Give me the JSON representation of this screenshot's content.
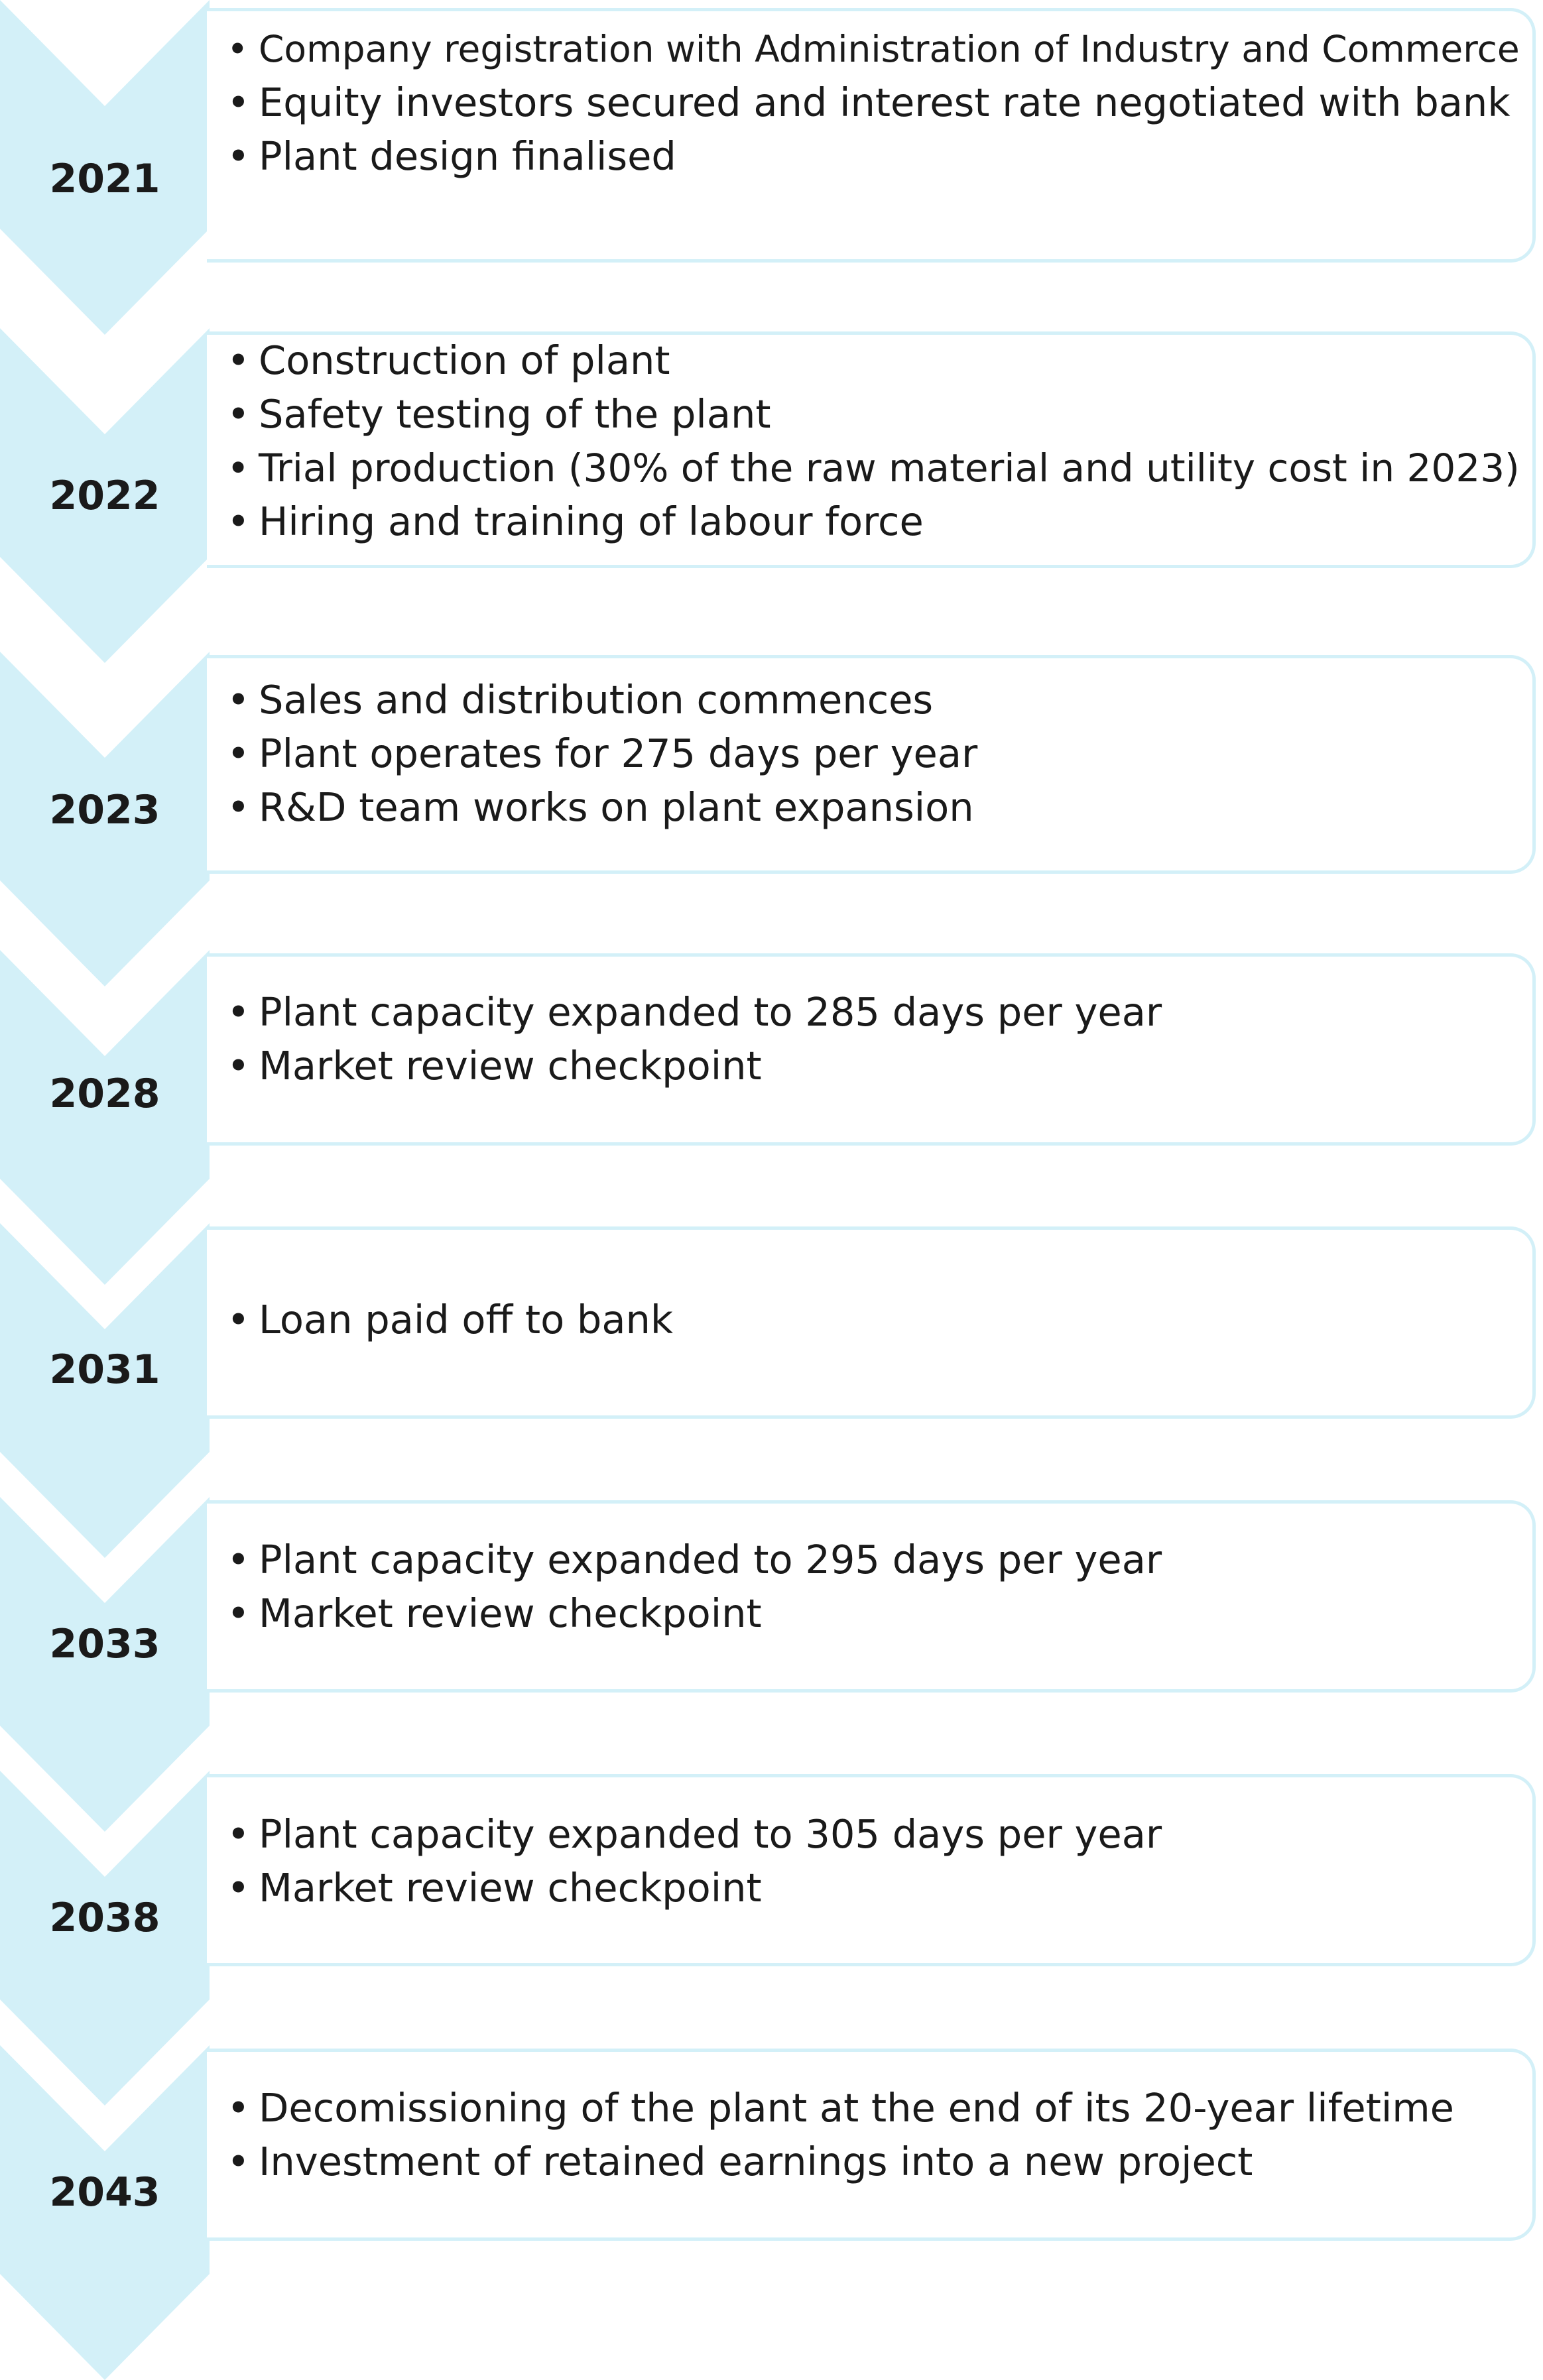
{
  "milestones": [
    {
      "year": "2021",
      "items": [
        "Company registration with Administration of Industry and Commerce",
        "Equity investors secured and interest rate negotiated with bank",
        "Plant design finalised"
      ]
    },
    {
      "year": "2022",
      "items": [
        "Construction of plant",
        "Safety testing of the plant",
        "Trial production (30% of the raw material and utility cost in 2023)",
        "Hiring and training of labour force"
      ]
    },
    {
      "year": "2023",
      "items": [
        "Sales and distribution commences",
        "Plant operates for 275 days per year",
        "R&D team works on plant expansion"
      ]
    },
    {
      "year": "2028",
      "items": [
        "Plant capacity expanded to 285 days per year",
        "Market review checkpoint"
      ]
    },
    {
      "year": "2031",
      "items": [
        "Loan paid off to bank"
      ]
    },
    {
      "year": "2033",
      "items": [
        "Plant capacity expanded to 295 days per year",
        "Market review checkpoint"
      ]
    },
    {
      "year": "2038",
      "items": [
        "Plant capacity expanded to 305 days per year",
        "Market review checkpoint"
      ]
    },
    {
      "year": "2043",
      "items": [
        "Decomissioning of the plant at the end of its 20-year lifetime",
        "Investment of retained earnings into a new project"
      ]
    }
  ]
}
